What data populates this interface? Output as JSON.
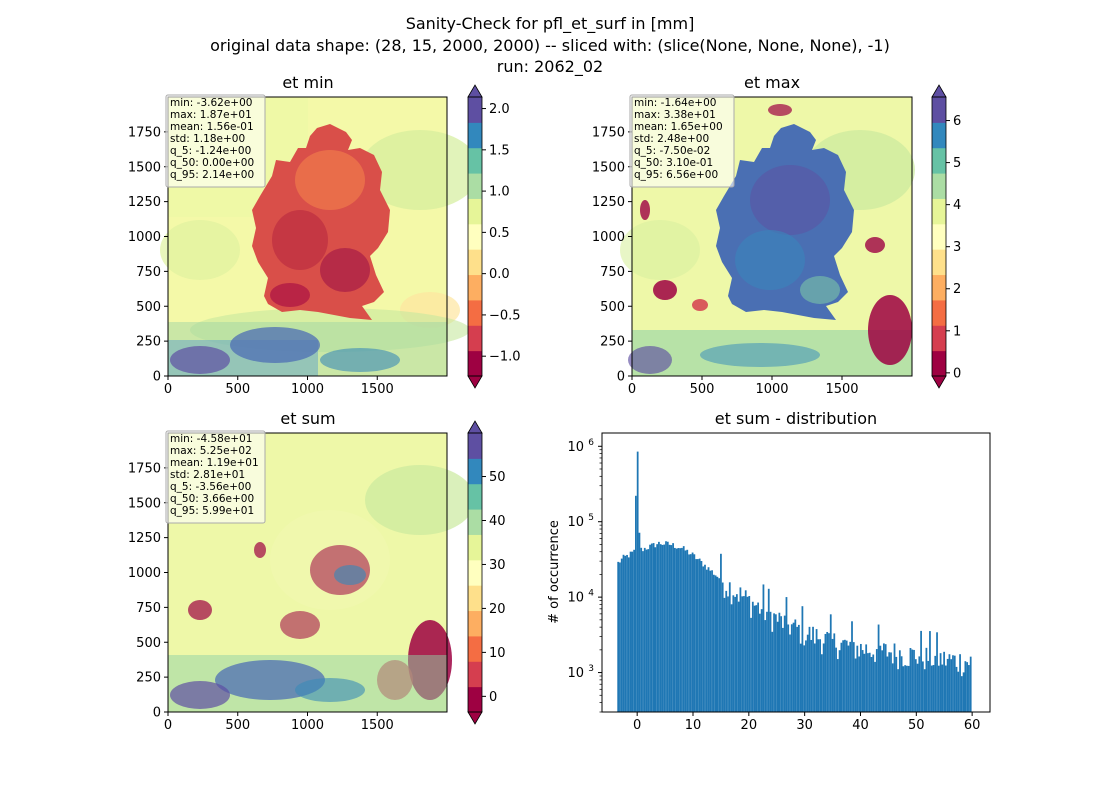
{
  "figure": {
    "suptitle_lines": [
      "Sanity-Check for pfl_et_surf in [mm]",
      "original data shape: (28, 15, 2000, 2000) -- sliced with: (slice(None, None, None), -1)",
      "run: 2062_02"
    ]
  },
  "colors": {
    "spectral": [
      "#9e0142",
      "#d53e4f",
      "#f46d43",
      "#fdae61",
      "#fee08b",
      "#ffffbf",
      "#e6f598",
      "#abdda4",
      "#66c2a5",
      "#3288bd",
      "#5e4fa2"
    ],
    "hist_bar": "#1f77b4"
  },
  "chart_data": [
    {
      "type": "heatmap",
      "title": "et min",
      "x_ticks": [
        0,
        500,
        1000,
        1500
      ],
      "y_ticks": [
        0,
        250,
        500,
        750,
        1000,
        1250,
        1500,
        1750
      ],
      "xlim": [
        0,
        2000
      ],
      "ylim": [
        0,
        2000
      ],
      "colorbar": {
        "ticks": [
          -1.0,
          -0.5,
          0.0,
          0.5,
          1.0,
          1.5,
          2.0
        ],
        "tick_labels": [
          "−1.0",
          "−0.5",
          "0.0",
          "0.5",
          "1.0",
          "1.5",
          "2.0"
        ],
        "range": [
          -1.24,
          2.14
        ],
        "extend": "both"
      },
      "stats": [
        "min: -3.62e+00",
        "max: 1.87e+01",
        "mean: 1.56e-01",
        "std: 1.18e+00",
        "q_5: -1.24e+00",
        "q_50: 0.00e+00",
        "q_95: 2.14e+00"
      ]
    },
    {
      "type": "heatmap",
      "title": "et max",
      "x_ticks": [
        0,
        500,
        1000,
        1500
      ],
      "y_ticks": [
        0,
        250,
        500,
        750,
        1000,
        1250,
        1500,
        1750
      ],
      "xlim": [
        0,
        2000
      ],
      "ylim": [
        0,
        2000
      ],
      "colorbar": {
        "ticks": [
          0,
          1,
          2,
          3,
          4,
          5,
          6
        ],
        "tick_labels": [
          "0",
          "1",
          "2",
          "3",
          "4",
          "5",
          "6"
        ],
        "range": [
          -0.075,
          6.56
        ],
        "extend": "both"
      },
      "stats": [
        "min: -1.64e+00",
        "max: 3.38e+01",
        "mean: 1.65e+00",
        "std: 2.48e+00",
        "q_5: -7.50e-02",
        "q_50: 3.10e-01",
        "q_95: 6.56e+00"
      ]
    },
    {
      "type": "heatmap",
      "title": "et sum",
      "x_ticks": [
        0,
        500,
        1000,
        1500
      ],
      "y_ticks": [
        0,
        250,
        500,
        750,
        1000,
        1250,
        1500,
        1750
      ],
      "xlim": [
        0,
        2000
      ],
      "ylim": [
        0,
        2000
      ],
      "colorbar": {
        "ticks": [
          0,
          10,
          20,
          30,
          40,
          50
        ],
        "tick_labels": [
          "0",
          "10",
          "20",
          "30",
          "40",
          "50"
        ],
        "range": [
          -3.56,
          59.9
        ],
        "extend": "both"
      },
      "stats": [
        "min: -4.58e+01",
        "max: 5.25e+02",
        "mean: 1.19e+01",
        "std: 2.81e+01",
        "q_5: -3.56e+00",
        "q_50: 3.66e+00",
        "q_95: 5.99e+01"
      ]
    },
    {
      "type": "bar",
      "title": "et sum - distribution",
      "ylabel": "# of occurrence",
      "yscale": "log",
      "x_ticks": [
        0,
        10,
        20,
        30,
        40,
        50,
        60
      ],
      "xlim": [
        -6.3,
        63.2
      ],
      "ylim": [
        300,
        1500000
      ],
      "y_ticks": [
        1000,
        10000,
        100000,
        1000000
      ],
      "y_tick_bases": [
        "10",
        "10",
        "10",
        "10"
      ],
      "y_tick_exps": [
        "3",
        "4",
        "5",
        "6"
      ],
      "bin_range": [
        -3.56,
        59.9
      ],
      "bins": 200,
      "anchors": [
        [
          -3.5,
          28000
        ],
        [
          -2.5,
          33000
        ],
        [
          -1.5,
          36000
        ],
        [
          -0.5,
          40000
        ],
        [
          0,
          850000
        ],
        [
          0.5,
          42000
        ],
        [
          2,
          46000
        ],
        [
          4,
          52000
        ],
        [
          6,
          50000
        ],
        [
          8,
          45000
        ],
        [
          10,
          36000
        ],
        [
          12,
          27000
        ],
        [
          14,
          20000
        ],
        [
          16,
          15000
        ],
        [
          18,
          11500
        ],
        [
          20,
          9000
        ],
        [
          25,
          5200
        ],
        [
          30,
          3400
        ],
        [
          35,
          2600
        ],
        [
          40,
          2100
        ],
        [
          45,
          1900
        ],
        [
          50,
          1700
        ],
        [
          55,
          1500
        ],
        [
          59.9,
          1400
        ]
      ]
    }
  ]
}
